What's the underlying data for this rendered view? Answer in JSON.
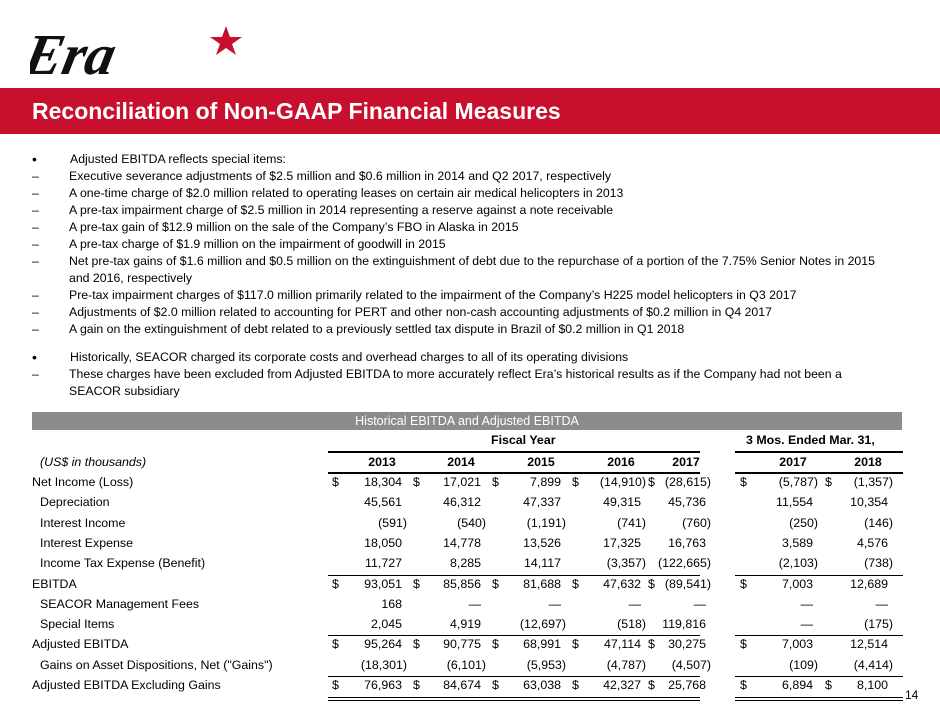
{
  "logo": {
    "text": "Era",
    "accent": "#c8102e"
  },
  "title": "Reconciliation of Non-GAAP Financial Measures",
  "bullets": [
    {
      "text": "Adjusted EBITDA reflects special items:",
      "subs": [
        "Executive severance adjustments of $2.5 million and $0.6 million in 2014 and Q2 2017, respectively",
        "A one-time charge of $2.0 million related to operating leases on certain air medical helicopters in 2013",
        "A pre-tax impairment charge of $2.5 million in 2014 representing a reserve against a note receivable",
        "A pre-tax gain of $12.9 million on the sale of the Company’s FBO in Alaska in 2015",
        "A pre-tax charge of $1.9 million on the impairment of goodwill in 2015",
        "Net pre-tax gains of $1.6 million and $0.5 million on the extinguishment of debt due to the repurchase of a portion of the 7.75% Senior Notes in 2015 and 2016, respectively",
        "Pre-tax impairment charges of $117.0 million primarily related to the impairment of the Company’s H225 model helicopters in Q3 2017",
        "Adjustments of $2.0 million related to accounting for PERT and other non-cash accounting adjustments of $0.2 million in Q4 2017",
        "A gain on the extinguishment of debt related to a previously settled tax dispute in Brazil of $0.2 million in Q1 2018"
      ]
    },
    {
      "text": "Historically, SEACOR charged its corporate costs and overhead charges to all of its operating divisions",
      "subs": [
        "These charges have been excluded from Adjusted EBITDA to more accurately reflect Era’s historical results as if the Company had not been a SEACOR subsidiary"
      ]
    }
  ],
  "table": {
    "caption": "Historical EBITDA and Adjusted EBITDA",
    "group_fiscal": "Fiscal Year",
    "group_quarter": "3 Mos. Ended Mar. 31,",
    "units": "(US$ in thousands)",
    "columns": [
      "2013",
      "2014",
      "2015",
      "2016",
      "2017",
      "2017",
      "2018"
    ],
    "rows": [
      {
        "label": "Net Income (Loss)",
        "indent": false,
        "dollar": [
          1,
          1,
          1,
          1,
          1,
          1,
          1
        ],
        "values": [
          "18,304",
          "17,021",
          "7,899",
          "(14,910)",
          "(28,615)",
          "(5,787)",
          "(1,357)"
        ]
      },
      {
        "label": "Depreciation",
        "indent": true,
        "dollar": [
          0,
          0,
          0,
          0,
          0,
          0,
          0
        ],
        "values": [
          "45,561",
          "46,312",
          "47,337",
          "49,315",
          "45,736",
          "11,554",
          "10,354"
        ]
      },
      {
        "label": "Interest Income",
        "indent": true,
        "dollar": [
          0,
          0,
          0,
          0,
          0,
          0,
          0
        ],
        "values": [
          "(591)",
          "(540)",
          "(1,191)",
          "(741)",
          "(760)",
          "(250)",
          "(146)"
        ]
      },
      {
        "label": "Interest Expense",
        "indent": true,
        "dollar": [
          0,
          0,
          0,
          0,
          0,
          0,
          0
        ],
        "values": [
          "18,050",
          "14,778",
          "13,526",
          "17,325",
          "16,763",
          "3,589",
          "4,576"
        ]
      },
      {
        "label": "Income Tax Expense (Benefit)",
        "indent": true,
        "dollar": [
          0,
          0,
          0,
          0,
          0,
          0,
          0
        ],
        "values": [
          "11,727",
          "8,285",
          "14,117",
          "(3,357)",
          "(122,665)",
          "(2,103)",
          "(738)"
        ]
      },
      {
        "label": "EBITDA",
        "indent": false,
        "dollar": [
          1,
          1,
          1,
          1,
          1,
          1,
          0
        ],
        "values": [
          "93,051",
          "85,856",
          "81,688",
          "47,632",
          "(89,541)",
          "7,003",
          "12,689"
        ]
      },
      {
        "label": "SEACOR Management Fees",
        "indent": true,
        "dollar": [
          0,
          0,
          0,
          0,
          0,
          0,
          0
        ],
        "values": [
          "168",
          "—",
          "—",
          "—",
          "—",
          "—",
          "—"
        ]
      },
      {
        "label": "Special Items",
        "indent": true,
        "dollar": [
          0,
          0,
          0,
          0,
          0,
          0,
          0
        ],
        "values": [
          "2,045",
          "4,919",
          "(12,697)",
          "(518)",
          "119,816",
          "—",
          "(175)"
        ]
      },
      {
        "label": "Adjusted EBITDA",
        "indent": false,
        "dollar": [
          1,
          1,
          1,
          1,
          1,
          1,
          0
        ],
        "values": [
          "95,264",
          "90,775",
          "68,991",
          "47,114",
          "30,275",
          "7,003",
          "12,514"
        ]
      },
      {
        "label": "Gains on Asset Dispositions, Net (\"Gains\")",
        "indent": true,
        "dollar": [
          0,
          0,
          0,
          0,
          0,
          0,
          0
        ],
        "values": [
          "(18,301)",
          "(6,101)",
          "(5,953)",
          "(4,787)",
          "(4,507)",
          "(109)",
          "(4,414)"
        ]
      },
      {
        "label": "Adjusted EBITDA Excluding Gains",
        "indent": false,
        "dollar": [
          1,
          1,
          1,
          1,
          1,
          1,
          1
        ],
        "values": [
          "76,963",
          "84,674",
          "63,038",
          "42,327",
          "25,768",
          "6,894",
          "8,100"
        ]
      }
    ]
  },
  "page_number": "14"
}
